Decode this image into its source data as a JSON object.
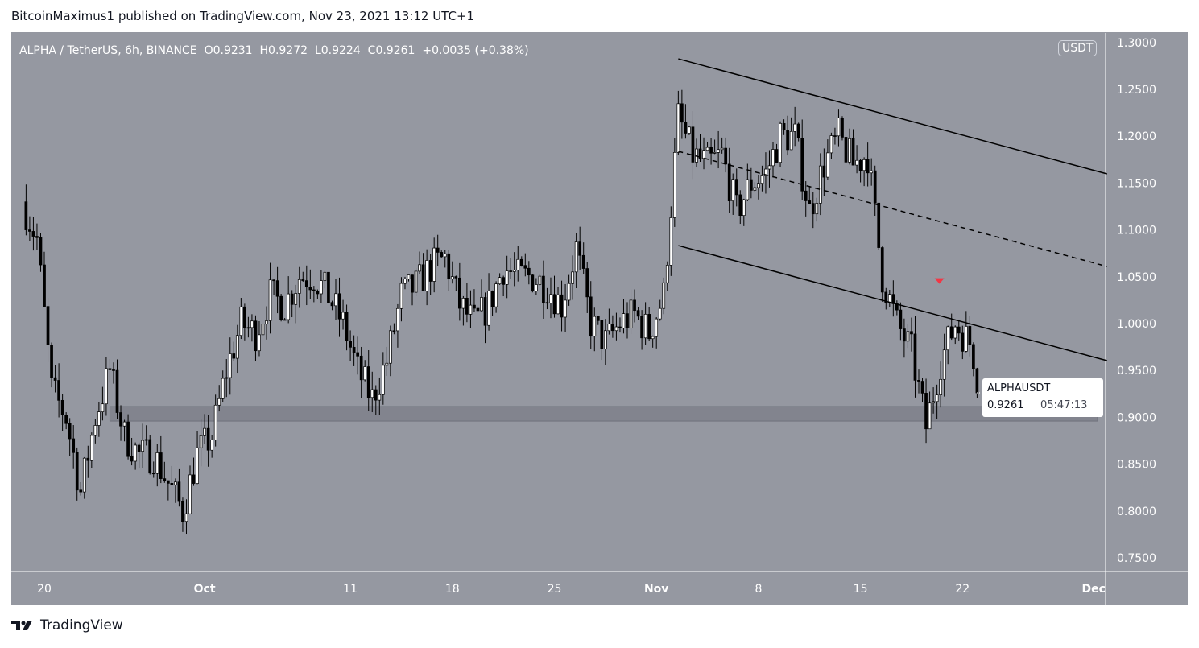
{
  "header": {
    "publisher_line": "BitcoinMaximus1 published on TradingView.com, Nov 23, 2021 13:12 UTC+1"
  },
  "legend": {
    "symbol": "ALPHA / TetherUS, 6h, BINANCE",
    "o_label": "O",
    "o": "0.9231",
    "h_label": "H",
    "h": "0.9272",
    "l_label": "L",
    "l": "0.9224",
    "c_label": "C",
    "c": "0.9261",
    "change": "+0.0035 (+0.38%)"
  },
  "currency_button": "USDT",
  "price_label": {
    "symbol": "ALPHAUSDT",
    "price": "0.9261",
    "countdown": "05:47:13"
  },
  "footer": {
    "brand": "TradingView"
  },
  "colors": {
    "background": "#9598a1",
    "up": "#ffffff",
    "down": "#000000",
    "zone": "#7d808a",
    "marker": "#f23645"
  },
  "chart_data": {
    "type": "candlestick",
    "timeframe": "6h",
    "ylim": [
      0.72,
      1.31
    ],
    "y_ticks": [
      "1.3000",
      "1.2500",
      "1.2000",
      "1.1500",
      "1.1000",
      "1.0500",
      "1.0000",
      "0.9500",
      "0.9000",
      "0.8500",
      "0.8000",
      "0.7500"
    ],
    "x_ticks": [
      {
        "label": "20",
        "date": "2021-09-20"
      },
      {
        "label": "Oct",
        "date": "2021-10-01"
      },
      {
        "label": "11",
        "date": "2021-10-11"
      },
      {
        "label": "18",
        "date": "2021-10-18"
      },
      {
        "label": "25",
        "date": "2021-10-25"
      },
      {
        "label": "Nov",
        "date": "2021-11-01"
      },
      {
        "label": "8",
        "date": "2021-11-08"
      },
      {
        "label": "15",
        "date": "2021-11-15"
      },
      {
        "label": "22",
        "date": "2021-11-22"
      },
      {
        "label": "Dec",
        "date": "2021-12-01"
      }
    ],
    "approx_daily_close": [
      [
        "2021-09-18",
        1.13
      ],
      [
        "2021-09-19",
        1.09
      ],
      [
        "2021-09-20",
        0.93
      ],
      [
        "2021-09-21",
        0.9
      ],
      [
        "2021-09-22",
        0.82
      ],
      [
        "2021-09-23",
        0.9
      ],
      [
        "2021-09-24",
        0.95
      ],
      [
        "2021-09-25",
        0.88
      ],
      [
        "2021-09-26",
        0.86
      ],
      [
        "2021-09-27",
        0.86
      ],
      [
        "2021-09-28",
        0.83
      ],
      [
        "2021-09-29",
        0.8
      ],
      [
        "2021-09-30",
        0.86
      ],
      [
        "2021-10-01",
        0.88
      ],
      [
        "2021-10-02",
        0.95
      ],
      [
        "2021-10-03",
        1.0
      ],
      [
        "2021-10-04",
        0.99
      ],
      [
        "2021-10-05",
        1.03
      ],
      [
        "2021-10-06",
        1.02
      ],
      [
        "2021-10-07",
        1.05
      ],
      [
        "2021-10-08",
        1.05
      ],
      [
        "2021-10-09",
        1.03
      ],
      [
        "2021-10-10",
        1.0
      ],
      [
        "2021-10-11",
        0.95
      ],
      [
        "2021-10-12",
        0.92
      ],
      [
        "2021-10-13",
        0.96
      ],
      [
        "2021-10-14",
        1.03
      ],
      [
        "2021-10-15",
        1.04
      ],
      [
        "2021-10-16",
        1.06
      ],
      [
        "2021-10-17",
        1.07
      ],
      [
        "2021-10-18",
        1.02
      ],
      [
        "2021-10-19",
        1.0
      ],
      [
        "2021-10-20",
        1.02
      ],
      [
        "2021-10-21",
        1.06
      ],
      [
        "2021-10-22",
        1.05
      ],
      [
        "2021-10-23",
        1.05
      ],
      [
        "2021-10-24",
        1.04
      ],
      [
        "2021-10-25",
        1.02
      ],
      [
        "2021-10-26",
        1.08
      ],
      [
        "2021-10-27",
        1.0
      ],
      [
        "2021-10-28",
        0.98
      ],
      [
        "2021-10-29",
        1.0
      ],
      [
        "2021-10-30",
        1.01
      ],
      [
        "2021-10-31",
        0.99
      ],
      [
        "2021-11-01",
        1.03
      ],
      [
        "2021-11-02",
        1.22
      ],
      [
        "2021-11-03",
        1.18
      ],
      [
        "2021-11-04",
        1.17
      ],
      [
        "2021-11-05",
        1.18
      ],
      [
        "2021-11-06",
        1.12
      ],
      [
        "2021-11-07",
        1.15
      ],
      [
        "2021-11-08",
        1.16
      ],
      [
        "2021-11-09",
        1.2
      ],
      [
        "2021-11-10",
        1.2
      ],
      [
        "2021-11-11",
        1.12
      ],
      [
        "2021-11-12",
        1.17
      ],
      [
        "2021-11-13",
        1.2
      ],
      [
        "2021-11-14",
        1.17
      ],
      [
        "2021-11-15",
        1.18
      ],
      [
        "2021-11-16",
        1.05
      ],
      [
        "2021-11-17",
        1.0
      ],
      [
        "2021-11-18",
        0.97
      ],
      [
        "2021-11-19",
        0.89
      ],
      [
        "2021-11-20",
        0.96
      ],
      [
        "2021-11-21",
        1.0
      ],
      [
        "2021-11-22",
        0.98
      ],
      [
        "2021-11-23",
        0.926
      ]
    ],
    "trendlines": [
      {
        "name": "channel-upper",
        "style": "solid",
        "from": [
          "2021-11-02T12:00",
          1.2826
        ],
        "to": [
          "2021-12-01T22:00",
          1.1598
        ]
      },
      {
        "name": "channel-mid",
        "style": "dashed",
        "from": [
          "2021-11-02T12:00",
          1.1839
        ],
        "to": [
          "2021-12-01T22:00",
          1.061
        ]
      },
      {
        "name": "channel-lower",
        "style": "solid",
        "from": [
          "2021-11-02T12:00",
          1.0833
        ],
        "to": [
          "2021-12-01T22:00",
          0.9605
        ]
      }
    ],
    "support_zone": {
      "from": "2021-09-24T12:00",
      "to": "2021-12-02T00:00",
      "low": 0.896,
      "high": 0.9115
    },
    "marker": {
      "type": "down-triangle",
      "date": "2021-11-20T10:00",
      "price": 1.045
    },
    "last_price": 0.9261
  }
}
